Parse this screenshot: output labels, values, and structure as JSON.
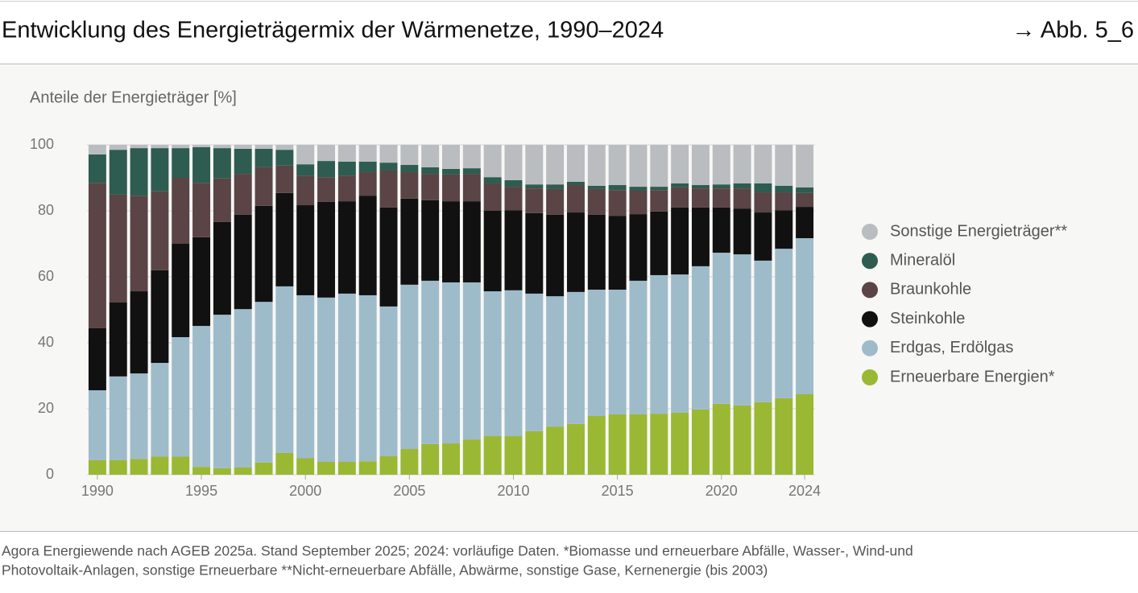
{
  "header": {
    "ref": "→ Abb. 5_6"
  },
  "chart_data": {
    "type": "stacked_bar",
    "title": "Entwicklung des Energieträgermix der Wärmenetze, 1990–2024",
    "y_label": "Anteile der Energieträger [%]",
    "x": [
      1990,
      1991,
      1992,
      1993,
      1994,
      1995,
      1996,
      1997,
      1998,
      1999,
      2000,
      2001,
      2002,
      2003,
      2004,
      2005,
      2006,
      2007,
      2008,
      2009,
      2010,
      2011,
      2012,
      2013,
      2014,
      2015,
      2016,
      2017,
      2018,
      2019,
      2020,
      2021,
      2022,
      2023,
      2024
    ],
    "xlim": [
      1989.5,
      2024.5
    ],
    "xticks": [
      1990,
      1995,
      2000,
      2005,
      2010,
      2015,
      2020,
      2024
    ],
    "ylim": [
      0,
      100
    ],
    "yticks": [
      0,
      20,
      40,
      60,
      80,
      100
    ],
    "grid": true,
    "legend": "right",
    "series": [
      {
        "name": "Erneuerbare Energien*",
        "color": "#9ab833",
        "values": [
          4.4,
          4.4,
          4.8,
          5.5,
          5.5,
          2.4,
          2.0,
          2.2,
          3.7,
          6.6,
          5.0,
          3.9,
          3.9,
          4.1,
          5.6,
          7.8,
          9.3,
          9.5,
          10.7,
          11.7,
          11.7,
          13.2,
          14.6,
          15.4,
          17.8,
          18.3,
          18.3,
          18.5,
          18.8,
          19.8,
          21.5,
          21.0,
          22.0,
          23.2,
          24.4
        ]
      },
      {
        "name": "Erdgas, Erdölgas",
        "color": "#9ebbca",
        "values": [
          21.2,
          25.4,
          25.9,
          28.4,
          36.2,
          42.7,
          46.5,
          48.0,
          48.7,
          50.5,
          49.4,
          49.8,
          51.0,
          50.3,
          45.4,
          49.8,
          49.5,
          48.8,
          47.6,
          43.9,
          44.2,
          41.7,
          39.5,
          40.0,
          38.3,
          37.8,
          40.5,
          42.0,
          41.9,
          43.4,
          45.8,
          45.8,
          42.9,
          45.3,
          47.3
        ]
      },
      {
        "name": "Steinkohle",
        "color": "#111111",
        "values": [
          18.8,
          22.4,
          24.9,
          28.1,
          28.3,
          26.9,
          28.1,
          28.6,
          29.1,
          28.3,
          27.3,
          29.0,
          28.0,
          30.2,
          30.0,
          26.1,
          24.4,
          24.6,
          24.6,
          24.4,
          24.3,
          24.4,
          24.7,
          24.1,
          22.7,
          22.4,
          20.2,
          19.3,
          20.3,
          17.8,
          13.7,
          13.9,
          14.6,
          11.7,
          9.5
        ]
      },
      {
        "name": "Braunkohle",
        "color": "#5a4446",
        "values": [
          44.1,
          32.7,
          29.0,
          23.9,
          20.0,
          16.5,
          13.2,
          12.4,
          11.7,
          8.3,
          9.0,
          7.5,
          7.8,
          7.1,
          11.2,
          8.0,
          8.0,
          8.1,
          8.3,
          8.3,
          7.1,
          7.5,
          7.8,
          8.3,
          7.8,
          7.8,
          7.1,
          6.5,
          6.1,
          5.8,
          5.8,
          6.1,
          6.1,
          5.4,
          4.2
        ]
      },
      {
        "name": "Mineralöl",
        "color": "#2e5c50",
        "values": [
          8.6,
          13.6,
          14.4,
          13.1,
          9.0,
          10.8,
          9.2,
          7.6,
          5.6,
          4.8,
          3.4,
          4.9,
          4.2,
          3.2,
          2.4,
          2.2,
          2.0,
          1.7,
          1.7,
          1.9,
          2.0,
          1.2,
          1.4,
          1.0,
          1.0,
          1.5,
          1.2,
          1.0,
          1.2,
          1.0,
          1.2,
          1.5,
          2.7,
          2.0,
          1.7
        ]
      },
      {
        "name": "Sonstige Energieträger**",
        "color": "#b9bdbf",
        "values": [
          2.9,
          1.5,
          1.0,
          1.0,
          1.0,
          0.7,
          1.0,
          1.2,
          1.2,
          1.5,
          5.9,
          4.9,
          5.1,
          5.1,
          5.4,
          6.1,
          6.8,
          7.3,
          7.1,
          9.8,
          10.7,
          12.0,
          12.0,
          11.2,
          12.4,
          12.2,
          12.7,
          12.7,
          11.7,
          12.2,
          12.0,
          11.7,
          11.7,
          12.4,
          12.9
        ]
      }
    ]
  },
  "footer": {
    "notes": [
      "Agora Energiewende nach AGEB 2025a. Stand September 2025; 2024: vorläufige Daten. *Biomasse und erneuerbare Abfälle, Wasser-, Wind-und",
      "Photovoltaik-Anlagen, sonstige Erneuerbare **Nicht-erneuerbare Abfälle, Abwärme, sonstige Gase, Kernenergie (bis 2003)"
    ]
  }
}
